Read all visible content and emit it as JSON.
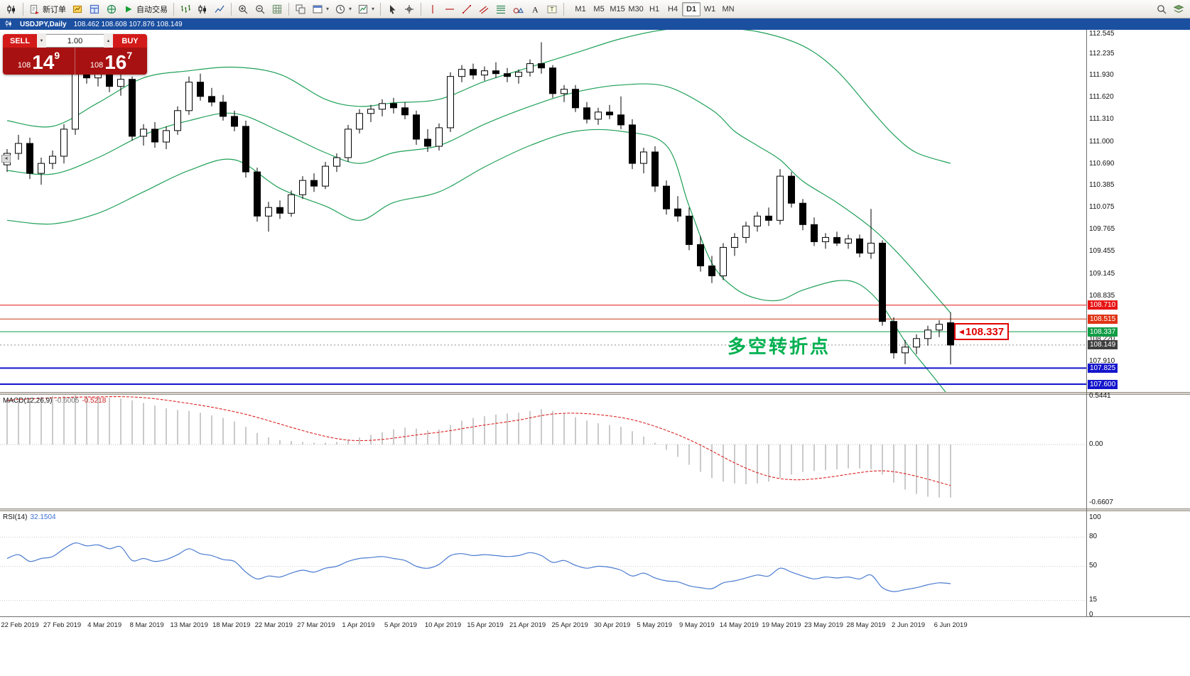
{
  "colors": {
    "titlebar_bg": "#1b4fa0",
    "panel_bg": "#a81111",
    "button_bg": "#d31a1a",
    "band_green": "#1fa058",
    "rsi_blue": "#4a7bd0",
    "macd_signal_red": "#dd2222",
    "hist_gray": "#a6a6a6"
  },
  "toolbar": {
    "items": [
      {
        "name": "chart-window-icon",
        "kind": "candles"
      },
      {
        "sep": true
      },
      {
        "name": "new-order-button",
        "kind": "neworder",
        "label": "新订单"
      },
      {
        "name": "market-watch-icon",
        "kind": "marketwatch"
      },
      {
        "name": "data-window-icon",
        "kind": "datawindow"
      },
      {
        "name": "navigator-icon",
        "kind": "navigator"
      },
      {
        "name": "autotrading-button",
        "kind": "play",
        "label": "自动交易"
      },
      {
        "sep": true
      },
      {
        "name": "bar-chart-icon",
        "kind": "bars"
      },
      {
        "name": "candlestick-chart-icon",
        "kind": "candles"
      },
      {
        "name": "line-chart-icon",
        "kind": "linechart"
      },
      {
        "sep": true
      },
      {
        "name": "zoom-in-icon",
        "kind": "zoomin"
      },
      {
        "name": "zoom-out-icon",
        "kind": "zoomout"
      },
      {
        "name": "grid-icon",
        "kind": "grid"
      },
      {
        "sep": true
      },
      {
        "name": "tile-windows-icon",
        "kind": "profiles"
      },
      {
        "name": "indicators-icon",
        "kind": "newchart",
        "dd": true
      },
      {
        "name": "periods-icon",
        "kind": "clock",
        "dd": true
      },
      {
        "name": "templates-icon",
        "kind": "template",
        "dd": true
      },
      {
        "sep": true
      },
      {
        "name": "cursor-icon",
        "kind": "cursor"
      },
      {
        "name": "crosshair-icon",
        "kind": "cross"
      },
      {
        "sep": true
      },
      {
        "name": "vertical-line-icon",
        "kind": "vline"
      },
      {
        "name": "horizontal-line-icon",
        "kind": "hline"
      },
      {
        "name": "trendline-icon",
        "kind": "trend"
      },
      {
        "name": "equidistant-channel-icon",
        "kind": "channel"
      },
      {
        "name": "fibonacci-retracement-icon",
        "kind": "fibo"
      },
      {
        "name": "shapes-icon",
        "kind": "shapes"
      },
      {
        "name": "text-icon",
        "kind": "textA"
      },
      {
        "name": "text-label-icon",
        "kind": "labelT"
      },
      {
        "sep": true
      }
    ],
    "right_items": [
      {
        "name": "search-icon",
        "kind": "search"
      },
      {
        "name": "objects-list-icon",
        "kind": "layers"
      }
    ],
    "timeframes": [
      "M1",
      "M5",
      "M15",
      "M30",
      "H1",
      "H4",
      "D1",
      "W1",
      "MN"
    ],
    "active_timeframe": "D1"
  },
  "titlebar": {
    "symbol": "USDJPY,Daily",
    "ohlc": "108.462 108.608 107.876 108.149"
  },
  "trade_panel": {
    "sell_label": "SELL",
    "buy_label": "BUY",
    "volume": "1.00",
    "sell_price": {
      "prefix": "108",
      "big": "14",
      "sup": "9"
    },
    "buy_price": {
      "prefix": "108",
      "big": "16",
      "sup": "7"
    }
  },
  "misc": {
    "edge_marker_glyph": "◄"
  },
  "chart_data": {
    "type": "candlestick",
    "symbol": "USDJPY",
    "timeframe": "Daily",
    "y_axis": {
      "min": 107.45,
      "max": 112.6
    },
    "price_axis_ticks": [
      "112.545",
      "112.235",
      "111.930",
      "111.620",
      "111.310",
      "111.000",
      "110.690",
      "110.385",
      "110.075",
      "109.765",
      "109.455",
      "109.145",
      "108.835",
      "108.220",
      "107.910"
    ],
    "hlines": [
      {
        "price": 108.71,
        "label": "108.710",
        "color": "#e81414",
        "label_bg": "#e81414",
        "width": 1
      },
      {
        "price": 108.515,
        "label": "108.515",
        "color": "#cc3a1a",
        "label_bg": "#e03414",
        "width": 1
      },
      {
        "price": 108.337,
        "label": "108.337",
        "color": "#0f9d45",
        "label_bg": "#0f9d45",
        "width": 1
      },
      {
        "price": 107.825,
        "label": "107.825",
        "color": "#1414cc",
        "label_bg": "#1414cc",
        "width": 2
      },
      {
        "price": 107.6,
        "label": "107.600",
        "color": "#1414cc",
        "label_bg": "#1414cc",
        "width": 2
      }
    ],
    "current_price": {
      "value": 108.149,
      "label": "108.149",
      "label_bg": "#3f3f3f"
    },
    "price_tag": {
      "text": "108.337",
      "color": "#e00000"
    },
    "annotation": {
      "text": "多空转折点",
      "color": "#00b050"
    },
    "dates": [
      "22 Feb 2019",
      "27 Feb 2019",
      "4 Mar 2019",
      "8 Mar 2019",
      "13 Mar 2019",
      "18 Mar 2019",
      "22 Mar 2019",
      "27 Mar 2019",
      "1 Apr 2019",
      "5 Apr 2019",
      "10 Apr 2019",
      "15 Apr 2019",
      "21 Apr 2019",
      "25 Apr 2019",
      "30 Apr 2019",
      "5 May 2019",
      "9 May 2019",
      "14 May 2019",
      "19 May 2019",
      "23 May 2019",
      "28 May 2019",
      "2 Jun 2019",
      "6 Jun 2019"
    ],
    "candles": [
      [
        110.68,
        110.9,
        110.58,
        110.84
      ],
      [
        110.84,
        111.1,
        110.75,
        110.98
      ],
      [
        110.98,
        111.06,
        110.48,
        110.56
      ],
      [
        110.56,
        110.78,
        110.4,
        110.7
      ],
      [
        110.7,
        110.88,
        110.62,
        110.8
      ],
      [
        110.8,
        111.25,
        110.7,
        111.18
      ],
      [
        111.18,
        112.1,
        111.1,
        111.98
      ],
      [
        111.98,
        112.18,
        111.82,
        111.9
      ],
      [
        111.9,
        112.05,
        111.78,
        112.0
      ],
      [
        112.0,
        112.08,
        111.7,
        111.78
      ],
      [
        111.78,
        111.95,
        111.65,
        111.88
      ],
      [
        111.88,
        111.92,
        111.02,
        111.08
      ],
      [
        111.08,
        111.25,
        110.95,
        111.18
      ],
      [
        111.18,
        111.28,
        110.92,
        111.0
      ],
      [
        111.0,
        111.22,
        110.9,
        111.16
      ],
      [
        111.16,
        111.5,
        111.1,
        111.44
      ],
      [
        111.44,
        111.92,
        111.38,
        111.84
      ],
      [
        111.84,
        111.96,
        111.58,
        111.64
      ],
      [
        111.64,
        111.76,
        111.5,
        111.56
      ],
      [
        111.56,
        111.66,
        111.3,
        111.36
      ],
      [
        111.36,
        111.44,
        111.15,
        111.22
      ],
      [
        111.22,
        111.3,
        110.5,
        110.58
      ],
      [
        110.58,
        110.64,
        109.88,
        109.96
      ],
      [
        109.96,
        110.16,
        109.74,
        110.08
      ],
      [
        110.08,
        110.18,
        109.92,
        110.0
      ],
      [
        110.0,
        110.32,
        109.95,
        110.26
      ],
      [
        110.26,
        110.52,
        110.2,
        110.46
      ],
      [
        110.46,
        110.56,
        110.3,
        110.38
      ],
      [
        110.38,
        110.72,
        110.34,
        110.66
      ],
      [
        110.66,
        110.84,
        110.58,
        110.78
      ],
      [
        110.78,
        111.24,
        110.72,
        111.18
      ],
      [
        111.18,
        111.46,
        111.12,
        111.4
      ],
      [
        111.4,
        111.52,
        111.28,
        111.46
      ],
      [
        111.46,
        111.6,
        111.36,
        111.54
      ],
      [
        111.54,
        111.62,
        111.4,
        111.48
      ],
      [
        111.48,
        111.56,
        111.32,
        111.38
      ],
      [
        111.38,
        111.44,
        110.96,
        111.04
      ],
      [
        111.04,
        111.18,
        110.86,
        110.94
      ],
      [
        110.94,
        111.26,
        110.88,
        111.2
      ],
      [
        111.2,
        111.98,
        111.14,
        111.92
      ],
      [
        111.92,
        112.08,
        111.84,
        112.02
      ],
      [
        112.02,
        112.1,
        111.88,
        111.94
      ],
      [
        111.94,
        112.06,
        111.86,
        112.0
      ],
      [
        112.0,
        112.12,
        111.9,
        111.96
      ],
      [
        111.96,
        112.04,
        111.84,
        111.92
      ],
      [
        111.92,
        112.02,
        111.82,
        111.98
      ],
      [
        111.98,
        112.16,
        111.92,
        112.1
      ],
      [
        112.1,
        112.4,
        111.96,
        112.04
      ],
      [
        112.04,
        112.08,
        111.62,
        111.68
      ],
      [
        111.68,
        111.8,
        111.56,
        111.74
      ],
      [
        111.74,
        111.8,
        111.42,
        111.48
      ],
      [
        111.48,
        111.56,
        111.26,
        111.32
      ],
      [
        111.32,
        111.48,
        111.24,
        111.42
      ],
      [
        111.42,
        111.52,
        111.32,
        111.38
      ],
      [
        111.38,
        111.64,
        111.18,
        111.24
      ],
      [
        111.24,
        111.32,
        110.62,
        110.7
      ],
      [
        110.7,
        110.92,
        110.56,
        110.86
      ],
      [
        110.86,
        110.94,
        110.3,
        110.38
      ],
      [
        110.38,
        110.46,
        109.98,
        110.06
      ],
      [
        110.06,
        110.24,
        109.88,
        109.96
      ],
      [
        109.96,
        110.08,
        109.48,
        109.56
      ],
      [
        109.56,
        109.68,
        109.18,
        109.26
      ],
      [
        109.26,
        109.4,
        109.02,
        109.12
      ],
      [
        109.12,
        109.58,
        109.06,
        109.52
      ],
      [
        109.52,
        109.72,
        109.4,
        109.66
      ],
      [
        109.66,
        109.88,
        109.58,
        109.82
      ],
      [
        109.82,
        110.02,
        109.74,
        109.96
      ],
      [
        109.96,
        110.08,
        109.82,
        109.9
      ],
      [
        109.9,
        110.62,
        109.84,
        110.52
      ],
      [
        110.52,
        110.58,
        110.08,
        110.14
      ],
      [
        110.14,
        110.2,
        109.76,
        109.84
      ],
      [
        109.84,
        109.94,
        109.54,
        109.6
      ],
      [
        109.6,
        109.72,
        109.5,
        109.66
      ],
      [
        109.66,
        109.74,
        109.54,
        109.58
      ],
      [
        109.58,
        109.7,
        109.5,
        109.64
      ],
      [
        109.64,
        109.7,
        109.38,
        109.44
      ],
      [
        109.44,
        110.06,
        109.36,
        109.58
      ],
      [
        109.58,
        109.62,
        108.42,
        108.48
      ],
      [
        108.48,
        108.54,
        107.96,
        108.04
      ],
      [
        108.04,
        108.22,
        107.88,
        108.12
      ],
      [
        108.12,
        108.3,
        108.02,
        108.24
      ],
      [
        108.24,
        108.42,
        108.14,
        108.36
      ],
      [
        108.36,
        108.5,
        108.26,
        108.44
      ],
      [
        108.462,
        108.608,
        107.876,
        108.149
      ]
    ],
    "bollinger": {
      "upper": [
        [
          0,
          111.3
        ],
        [
          4,
          111.22
        ],
        [
          8,
          111.55
        ],
        [
          12,
          111.9
        ],
        [
          16,
          112.0
        ],
        [
          20,
          112.05
        ],
        [
          24,
          111.95
        ],
        [
          28,
          111.6
        ],
        [
          31,
          111.5
        ],
        [
          34,
          111.55
        ],
        [
          38,
          111.6
        ],
        [
          42,
          111.85
        ],
        [
          46,
          112.05
        ],
        [
          50,
          112.25
        ],
        [
          54,
          112.45
        ],
        [
          58,
          112.58
        ],
        [
          62,
          112.6
        ],
        [
          66,
          112.55
        ],
        [
          70,
          112.35
        ],
        [
          73,
          112.0
        ],
        [
          76,
          111.45
        ],
        [
          78,
          111.1
        ],
        [
          80,
          110.85
        ],
        [
          83,
          110.7
        ]
      ],
      "middle": [
        [
          0,
          110.6
        ],
        [
          4,
          110.55
        ],
        [
          8,
          110.78
        ],
        [
          12,
          111.1
        ],
        [
          16,
          111.3
        ],
        [
          20,
          111.4
        ],
        [
          24,
          111.15
        ],
        [
          28,
          110.85
        ],
        [
          31,
          110.7
        ],
        [
          34,
          110.85
        ],
        [
          38,
          110.95
        ],
        [
          42,
          111.25
        ],
        [
          46,
          111.5
        ],
        [
          50,
          111.7
        ],
        [
          54,
          111.8
        ],
        [
          58,
          111.78
        ],
        [
          62,
          111.45
        ],
        [
          64,
          111.15
        ],
        [
          66,
          110.95
        ],
        [
          68,
          110.75
        ],
        [
          70,
          110.45
        ],
        [
          73,
          110.15
        ],
        [
          76,
          109.8
        ],
        [
          78,
          109.5
        ],
        [
          80,
          109.15
        ],
        [
          83,
          108.6
        ]
      ],
      "lower": [
        [
          0,
          109.9
        ],
        [
          4,
          109.85
        ],
        [
          8,
          110.0
        ],
        [
          12,
          110.3
        ],
        [
          16,
          110.6
        ],
        [
          20,
          110.75
        ],
        [
          24,
          110.35
        ],
        [
          28,
          110.1
        ],
        [
          31,
          109.9
        ],
        [
          34,
          110.15
        ],
        [
          38,
          110.3
        ],
        [
          42,
          110.65
        ],
        [
          46,
          110.95
        ],
        [
          50,
          111.15
        ],
        [
          54,
          111.15
        ],
        [
          58,
          110.95
        ],
        [
          60,
          110.1
        ],
        [
          62,
          109.3
        ],
        [
          64,
          108.95
        ],
        [
          66,
          108.8
        ],
        [
          68,
          108.78
        ],
        [
          70,
          108.92
        ],
        [
          73,
          109.05
        ],
        [
          75,
          109.0
        ],
        [
          77,
          108.7
        ],
        [
          79,
          108.2
        ],
        [
          81,
          107.8
        ],
        [
          83,
          107.4
        ]
      ]
    },
    "macd": {
      "name": "MACD(12,26,9)",
      "value_main": "-0.6005",
      "value_signal": "-0.5218",
      "ticks": [
        "0.5441",
        "0.00",
        "-0.6607"
      ],
      "hist": [
        0.5,
        0.52,
        0.53,
        0.54,
        0.55,
        0.55,
        0.56,
        0.55,
        0.54,
        0.53,
        0.52,
        0.5,
        0.47,
        0.44,
        0.41,
        0.39,
        0.38,
        0.36,
        0.33,
        0.3,
        0.26,
        0.2,
        0.13,
        0.08,
        0.05,
        0.04,
        0.03,
        0.02,
        0.02,
        0.03,
        0.05,
        0.08,
        0.11,
        0.14,
        0.17,
        0.19,
        0.18,
        0.16,
        0.17,
        0.22,
        0.27,
        0.3,
        0.32,
        0.34,
        0.35,
        0.36,
        0.38,
        0.4,
        0.38,
        0.35,
        0.31,
        0.27,
        0.24,
        0.22,
        0.2,
        0.15,
        0.09,
        0.02,
        -0.06,
        -0.14,
        -0.23,
        -0.31,
        -0.38,
        -0.42,
        -0.44,
        -0.45,
        -0.44,
        -0.42,
        -0.38,
        -0.34,
        -0.31,
        -0.3,
        -0.29,
        -0.28,
        -0.27,
        -0.27,
        -0.28,
        -0.34,
        -0.43,
        -0.51,
        -0.56,
        -0.59,
        -0.6,
        -0.6
      ]
    },
    "rsi": {
      "name": "RSI(14)",
      "value": "32.1504",
      "ticks": [
        "100",
        "80",
        "50",
        "15",
        "0"
      ],
      "levels": [
        80,
        50,
        15
      ],
      "values": [
        58,
        62,
        55,
        58,
        60,
        68,
        74,
        71,
        72,
        68,
        70,
        56,
        58,
        55,
        57,
        62,
        68,
        63,
        61,
        57,
        55,
        44,
        37,
        40,
        39,
        43,
        46,
        44,
        48,
        50,
        55,
        58,
        59,
        60,
        58,
        56,
        50,
        48,
        52,
        61,
        63,
        61,
        62,
        61,
        60,
        61,
        64,
        61,
        54,
        56,
        51,
        48,
        50,
        49,
        46,
        40,
        43,
        38,
        35,
        34,
        30,
        28,
        27,
        33,
        35,
        38,
        41,
        40,
        48,
        44,
        40,
        37,
        39,
        38,
        39,
        37,
        41,
        28,
        24,
        26,
        28,
        31,
        33,
        32.15
      ]
    }
  }
}
